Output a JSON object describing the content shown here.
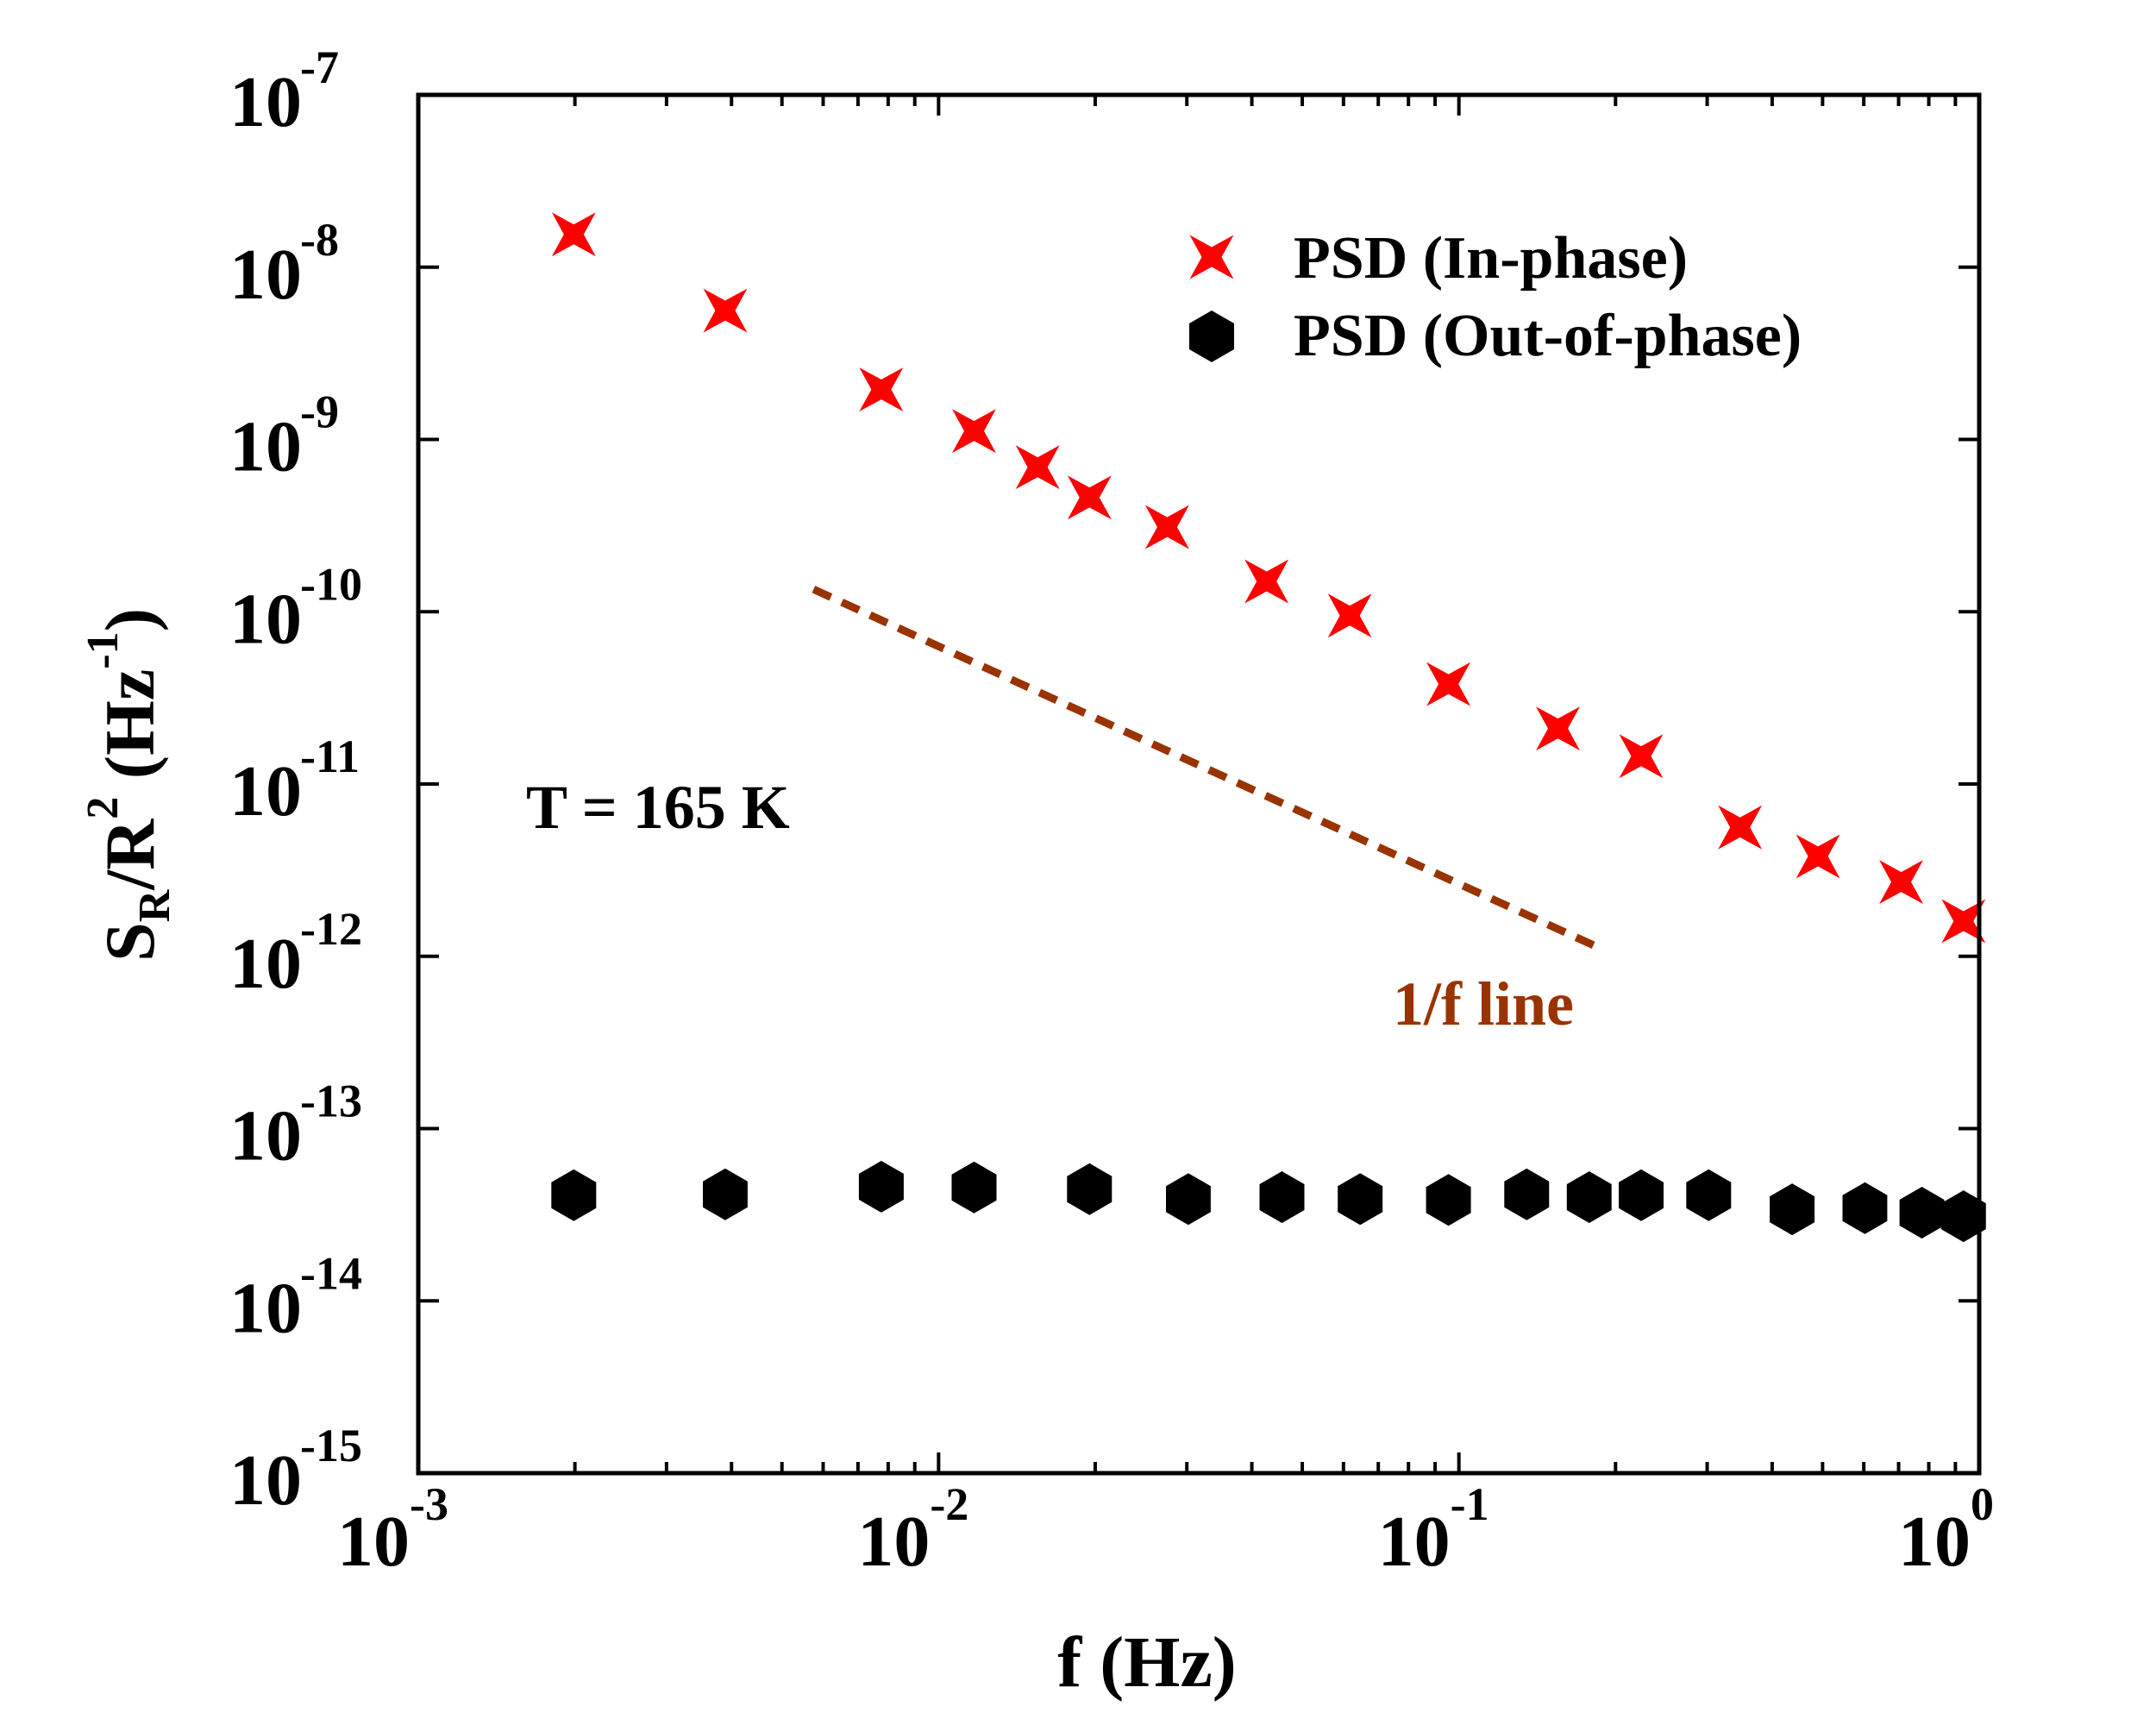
{
  "chart_data": {
    "type": "scatter",
    "xlabel": "f (Hz)",
    "ylabel": {
      "base": "S",
      "sub": "R",
      "mid": "/R",
      "sup": "2",
      "unit": " (Hz",
      "unit_sup": "-1",
      "close": ")"
    },
    "x_scale": "log",
    "y_scale": "log",
    "xlim": [
      0.001,
      1
    ],
    "ylim": [
      1e-15,
      1e-07
    ],
    "x_ticks": [
      {
        "base": "10",
        "exp": "-3",
        "value": 0.001
      },
      {
        "base": "10",
        "exp": "-2",
        "value": 0.01
      },
      {
        "base": "10",
        "exp": "-1",
        "value": 0.1
      },
      {
        "base": "10",
        "exp": "0",
        "value": 1
      }
    ],
    "y_ticks": [
      {
        "base": "10",
        "exp": "-15",
        "value": 1e-15
      },
      {
        "base": "10",
        "exp": "-14",
        "value": 1e-14
      },
      {
        "base": "10",
        "exp": "-13",
        "value": 1e-13
      },
      {
        "base": "10",
        "exp": "-12",
        "value": 1e-12
      },
      {
        "base": "10",
        "exp": "-11",
        "value": 1e-11
      },
      {
        "base": "10",
        "exp": "-10",
        "value": 1e-10
      },
      {
        "base": "10",
        "exp": "-9",
        "value": 1e-09
      },
      {
        "base": "10",
        "exp": "-8",
        "value": 1e-08
      },
      {
        "base": "10",
        "exp": "-7",
        "value": 1e-07
      }
    ],
    "grid": false,
    "legend_position": "top-right",
    "series": [
      {
        "name": "PSD (In-phase)",
        "marker": "star4",
        "color": "#ff0000",
        "points": [
          [
            0.00199,
            1.55e-08
          ],
          [
            0.00389,
            5.6e-09
          ],
          [
            0.00776,
            1.95e-09
          ],
          [
            0.0117,
            1.12e-09
          ],
          [
            0.0155,
            6.9e-10
          ],
          [
            0.0195,
            4.6e-10
          ],
          [
            0.0275,
            3.1e-10
          ],
          [
            0.0427,
            1.5e-10
          ],
          [
            0.0617,
            9.5e-11
          ],
          [
            0.0955,
            3.8e-11
          ],
          [
            0.155,
            2.1e-11
          ],
          [
            0.224,
            1.45e-11
          ],
          [
            0.347,
            5.6e-12
          ],
          [
            0.49,
            3.8e-12
          ],
          [
            0.708,
            2.7e-12
          ],
          [
            0.933,
            1.6e-12
          ]
        ]
      },
      {
        "name": "PSD (Out-of-phase)",
        "marker": "hexagon",
        "color": "#000000",
        "points": [
          [
            0.00199,
            4.1e-14
          ],
          [
            0.00389,
            4.15e-14
          ],
          [
            0.00776,
            4.6e-14
          ],
          [
            0.0117,
            4.55e-14
          ],
          [
            0.0195,
            4.45e-14
          ],
          [
            0.0302,
            3.9e-14
          ],
          [
            0.0457,
            4e-14
          ],
          [
            0.0646,
            3.9e-14
          ],
          [
            0.0955,
            3.85e-14
          ],
          [
            0.135,
            4.15e-14
          ],
          [
            0.178,
            4e-14
          ],
          [
            0.224,
            4.1e-14
          ],
          [
            0.302,
            4.1e-14
          ],
          [
            0.437,
            3.4e-14
          ],
          [
            0.603,
            3.45e-14
          ],
          [
            0.776,
            3.25e-14
          ],
          [
            0.933,
            3.1e-14
          ]
        ]
      }
    ],
    "reference_line": {
      "label": "1/f line",
      "color": "#993300",
      "points": [
        [
          0.00575,
          1.35e-10
        ],
        [
          0.186,
          1.12e-12
        ]
      ]
    },
    "annotation": "T = 165 K"
  }
}
